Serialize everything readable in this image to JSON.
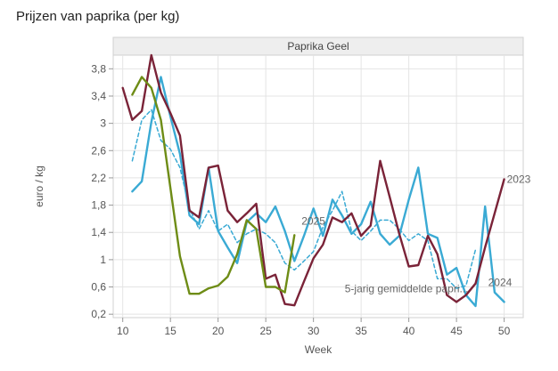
{
  "page": {
    "title": "Prijzen van paprika (per kg)"
  },
  "chart_data": {
    "type": "line",
    "title": "Prijzen van paprika (per kg)",
    "panel_title": "Paprika Geel",
    "xlabel": "Week",
    "ylabel": "euro / kg",
    "xlim": [
      9,
      52
    ],
    "ylim": [
      0.15,
      4.0
    ],
    "xticks": [
      10,
      15,
      20,
      25,
      30,
      35,
      40,
      45,
      50
    ],
    "yticks": [
      0.2,
      0.6,
      1,
      1.4,
      1.8,
      2.2,
      2.6,
      3,
      3.4,
      3.8
    ],
    "ytick_labels": [
      "0,2",
      "0,6",
      "1",
      "1,4",
      "1,8",
      "2,2",
      "2,6",
      "3",
      "3,4",
      "3,8"
    ],
    "grid": true,
    "series": [
      {
        "name": "2023",
        "label": "2023",
        "color": "#7a2338",
        "dash": false,
        "x": [
          10,
          11,
          12,
          13,
          14,
          15,
          16,
          17,
          18,
          19,
          20,
          21,
          22,
          23,
          24,
          25,
          26,
          27,
          28,
          29,
          30,
          31,
          32,
          33,
          34,
          35,
          36,
          37,
          38,
          39,
          40,
          41,
          42,
          43,
          44,
          45,
          46,
          47,
          48,
          49,
          50
        ],
        "values": [
          3.52,
          3.05,
          3.18,
          4.0,
          3.45,
          3.15,
          2.82,
          1.72,
          1.62,
          2.35,
          2.38,
          1.72,
          1.55,
          1.68,
          1.82,
          0.72,
          0.78,
          0.35,
          0.33,
          0.68,
          1.02,
          1.22,
          1.62,
          1.55,
          1.68,
          1.35,
          1.5,
          2.45,
          1.92,
          1.38,
          0.9,
          0.92,
          1.35,
          1.08,
          0.48,
          0.38,
          0.48,
          0.65,
          1.18,
          1.68,
          2.18
        ]
      },
      {
        "name": "2024",
        "label": "2024",
        "color": "#3aaad4",
        "dash": false,
        "x": [
          11,
          12,
          13,
          14,
          15,
          16,
          17,
          18,
          19,
          20,
          21,
          22,
          23,
          24,
          25,
          26,
          27,
          28,
          29,
          30,
          31,
          32,
          33,
          34,
          35,
          36,
          37,
          38,
          39,
          40,
          41,
          42,
          43,
          44,
          45,
          46,
          47,
          48,
          49,
          50
        ],
        "values": [
          2.0,
          2.15,
          3.02,
          3.68,
          3.1,
          2.55,
          1.65,
          1.52,
          2.35,
          1.42,
          1.18,
          0.95,
          1.55,
          1.68,
          1.55,
          1.78,
          1.42,
          0.98,
          1.35,
          1.75,
          1.35,
          1.88,
          1.65,
          1.38,
          1.52,
          1.85,
          1.38,
          1.22,
          1.35,
          1.88,
          2.35,
          1.38,
          1.32,
          0.78,
          0.88,
          0.48,
          0.32,
          1.78,
          0.52,
          0.38
        ]
      },
      {
        "name": "5-jarig gemiddelde paprika",
        "label": "5-jarig gemiddelde papri...",
        "color": "#3aaad4",
        "dash": true,
        "x": [
          11,
          12,
          13,
          14,
          15,
          16,
          17,
          18,
          19,
          20,
          21,
          22,
          23,
          24,
          25,
          26,
          27,
          28,
          29,
          30,
          31,
          32,
          33,
          34,
          35,
          36,
          37,
          38,
          39,
          40,
          41,
          42,
          43,
          44,
          45,
          46,
          47
        ],
        "values": [
          2.45,
          3.05,
          3.2,
          2.75,
          2.62,
          2.35,
          1.75,
          1.45,
          1.72,
          1.42,
          1.52,
          1.25,
          1.38,
          1.45,
          1.38,
          1.25,
          0.95,
          0.85,
          0.98,
          1.12,
          1.48,
          1.72,
          2.0,
          1.42,
          1.28,
          1.42,
          1.58,
          1.58,
          1.45,
          1.28,
          1.38,
          1.28,
          0.72,
          0.72,
          0.58,
          0.62,
          1.15
        ]
      },
      {
        "name": "2025",
        "label": "2025",
        "color": "#6e8c16",
        "dash": false,
        "x": [
          11,
          12,
          13,
          14,
          15,
          16,
          17,
          18,
          19,
          20,
          21,
          22,
          23,
          24,
          25,
          26,
          27,
          28
        ],
        "values": [
          3.42,
          3.68,
          3.52,
          3.05,
          2.05,
          1.05,
          0.5,
          0.5,
          0.58,
          0.62,
          0.75,
          1.08,
          1.58,
          1.45,
          0.6,
          0.6,
          0.52,
          1.36
        ]
      }
    ]
  }
}
